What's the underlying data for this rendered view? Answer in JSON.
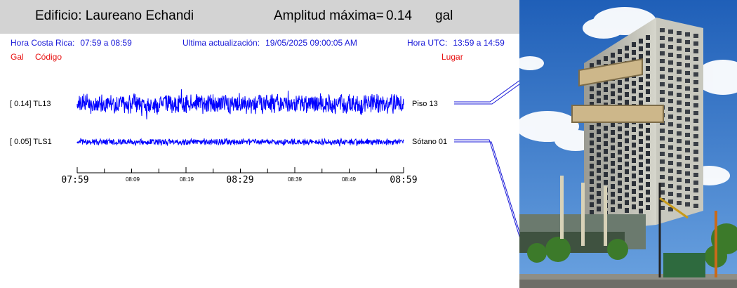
{
  "header": {
    "building": "Edificio: Laureano Echandi",
    "amplitude_label": "Amplitud máxima=",
    "amplitude_value": "0.14",
    "amplitude_unit": "gal"
  },
  "info": {
    "cr_label": "Hora Costa Rica:",
    "cr_value": "07:59 a 08:59",
    "update_label": "Ultima actualización:",
    "update_value": "19/05/2025 09:00:05 AM",
    "utc_label": "Hora UTC:",
    "utc_value": "13:59 a 14:59"
  },
  "columns": {
    "gal": "Gal",
    "codigo": "Código",
    "lugar": "Lugar"
  },
  "channels": [
    {
      "value": "[   0.14] TL13",
      "location": "Piso 13",
      "amplitude": 0.14,
      "color": "#0000ff"
    },
    {
      "value": "[   0.05] TLS1",
      "location": "Sótano 01",
      "amplitude": 0.05,
      "color": "#0000ff"
    }
  ],
  "time_axis": {
    "major": [
      "07:59",
      "08:29",
      "08:59"
    ],
    "minor": [
      "08:09",
      "08:19",
      "08:39",
      "08:49"
    ]
  },
  "colors": {
    "header_bg": "#d3d3d3",
    "info_text": "#1a1ad8",
    "label_red": "#e81010",
    "trace": "#0000ff"
  },
  "photo": {
    "icon": "building-photo"
  }
}
